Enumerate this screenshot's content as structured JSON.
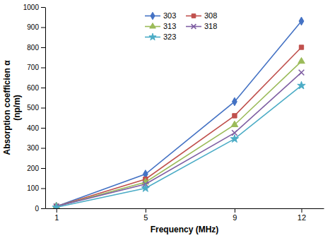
{
  "chart_data": {
    "type": "line",
    "xlabel": "Frequency (MHz)",
    "ylabel": "Absorption coefficien α\n(np/m)",
    "x": [
      1,
      5,
      9,
      12
    ],
    "series": [
      {
        "name": "303",
        "color": "#4472C4",
        "marker": "diamond",
        "values": [
          10,
          170,
          530,
          930
        ]
      },
      {
        "name": "308",
        "color": "#C0504D",
        "marker": "square",
        "values": [
          10,
          145,
          460,
          800
        ]
      },
      {
        "name": "313",
        "color": "#9BBB59",
        "marker": "triangle",
        "values": [
          10,
          130,
          415,
          730
        ]
      },
      {
        "name": "318",
        "color": "#7F5FA3",
        "marker": "x",
        "values": [
          10,
          120,
          375,
          675
        ]
      },
      {
        "name": "323",
        "color": "#4BACC6",
        "marker": "star",
        "values": [
          5,
          100,
          345,
          610
        ]
      }
    ],
    "xlim": [
      0.5,
      13
    ],
    "ylim": [
      0,
      1000
    ],
    "xticks": [
      1,
      5,
      9,
      12
    ],
    "yticks": [
      0,
      100,
      200,
      300,
      400,
      500,
      600,
      700,
      800,
      900,
      1000
    ],
    "grid": false,
    "legend": "upper center"
  }
}
